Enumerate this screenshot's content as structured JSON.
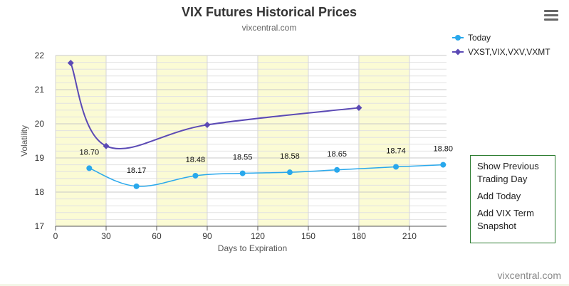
{
  "header": {
    "title": "VIX Futures Historical Prices",
    "subtitle": "vixcentral.com"
  },
  "side_panel": {
    "items": [
      "Show Previous Trading Day",
      "Add Today",
      "Add VIX Term Snapshot"
    ]
  },
  "footer": {
    "credit": "vixcentral.com"
  },
  "chart_data": {
    "type": "line",
    "title": "VIX Futures Historical Prices",
    "subtitle": "vixcentral.com",
    "xlabel": "Days to Expiration",
    "ylabel": "Volatility",
    "xlim": [
      0,
      232
    ],
    "ylim": [
      17,
      22
    ],
    "x_ticks": [
      0,
      30,
      60,
      90,
      120,
      150,
      180,
      210
    ],
    "y_ticks": [
      17,
      18,
      19,
      20,
      21,
      22
    ],
    "legend_position": "top-right",
    "grid": true,
    "shaded_bands": [
      [
        0,
        30
      ],
      [
        60,
        90
      ],
      [
        120,
        150
      ],
      [
        180,
        210
      ]
    ],
    "series": [
      {
        "name": "Today",
        "color": "#29a8ec",
        "marker": "circle",
        "show_labels": true,
        "points": [
          {
            "x": 20,
            "y": 18.7,
            "label": "18.70"
          },
          {
            "x": 48,
            "y": 18.17,
            "label": "18.17"
          },
          {
            "x": 83,
            "y": 18.48,
            "label": "18.48"
          },
          {
            "x": 111,
            "y": 18.55,
            "label": "18.55"
          },
          {
            "x": 139,
            "y": 18.58,
            "label": "18.58"
          },
          {
            "x": 167,
            "y": 18.65,
            "label": "18.65"
          },
          {
            "x": 202,
            "y": 18.74,
            "label": "18.74"
          },
          {
            "x": 230,
            "y": 18.8,
            "label": "18.80"
          }
        ]
      },
      {
        "name": "VXST,VIX,VXV,VXMT",
        "color": "#5b4ab5",
        "marker": "diamond",
        "show_labels": false,
        "points": [
          {
            "x": 9,
            "y": 21.78
          },
          {
            "x": 30,
            "y": 19.35
          },
          {
            "x": 90,
            "y": 19.97
          },
          {
            "x": 180,
            "y": 20.47
          }
        ]
      }
    ]
  }
}
